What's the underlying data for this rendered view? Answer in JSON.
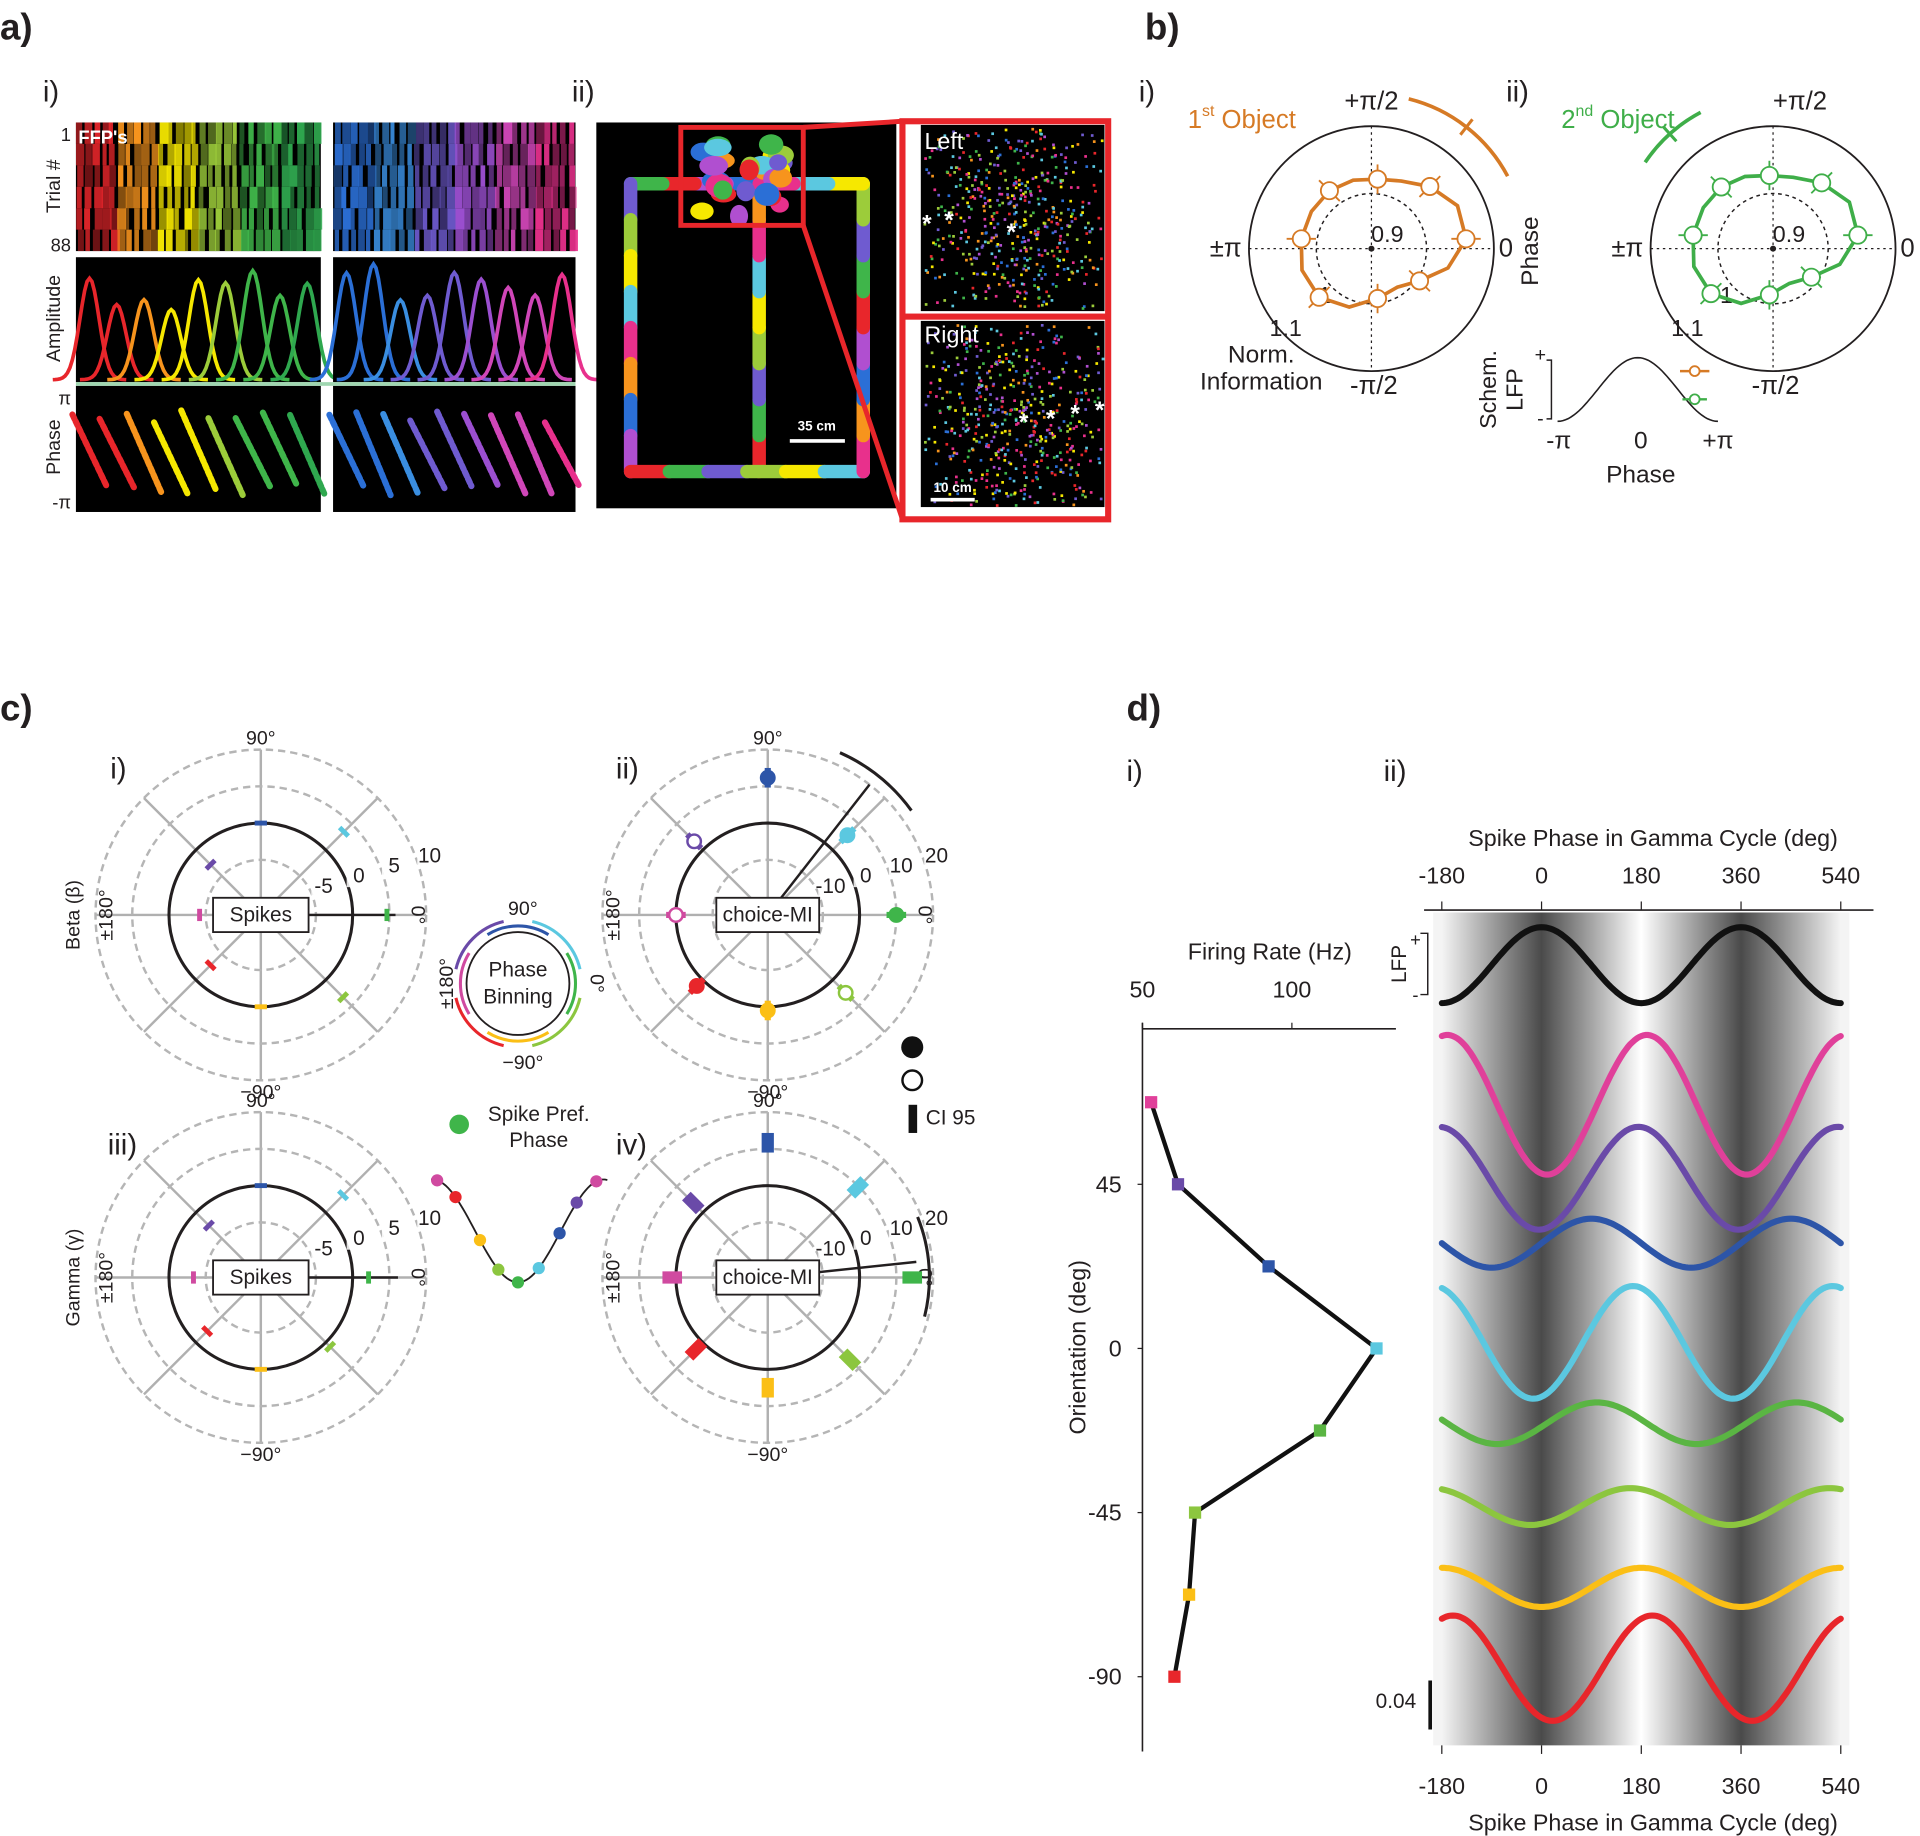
{
  "panel_labels": [
    "a)",
    "b)",
    "c)",
    "d)"
  ],
  "a": {
    "sub": [
      "i)",
      "ii)"
    ],
    "row_labels": [
      "Trial #",
      "Amplitude",
      "Phase"
    ],
    "trial_ticks": [
      "1",
      "88"
    ],
    "phase_ticks": [
      "π",
      "-π"
    ],
    "ffp": "FFP's",
    "insets": [
      "Left",
      "Right"
    ],
    "asterisk": "*",
    "scale_bars": [
      "35 cm",
      "10 cm"
    ]
  },
  "b": {
    "sub": [
      "i)",
      "ii)"
    ],
    "titles": [
      [
        "1",
        "st",
        " Object"
      ],
      [
        "2",
        "nd",
        " Object"
      ]
    ],
    "angle_labels": [
      "+π/2",
      "0",
      "±π",
      "-π/2"
    ],
    "radial_labels": [
      "0.9",
      "1",
      "1.1"
    ],
    "axis_label": [
      "Norm.",
      "Information"
    ],
    "phase_label": "Phase",
    "inset": {
      "y_label": [
        "Schem.",
        "LFP"
      ],
      "y_ticks": [
        "+",
        "-"
      ],
      "x_ticks": [
        "-π",
        "0",
        "+π"
      ],
      "x_label": "Phase"
    }
  },
  "c": {
    "sub": [
      "i)",
      "ii)",
      "iii)",
      "iv)"
    ],
    "row_labels": [
      "Beta (β)",
      "Gamma (γ)"
    ],
    "angle_labels": [
      "90°",
      "−90°",
      "±180°",
      "0°"
    ],
    "center_labels": [
      "Spikes",
      "choice-MI"
    ],
    "radial_ticks_spikes": [
      -5,
      0,
      5,
      10
    ],
    "radial_ticks_mi": [
      -10,
      0,
      10,
      20
    ],
    "binning": [
      "Phase",
      "Binning"
    ],
    "legend": {
      "ci": "CI 95",
      "pref": [
        "Spike Pref.",
        "Phase"
      ]
    }
  },
  "d": {
    "sub": [
      "i)",
      "ii)"
    ],
    "rate": {
      "type": "line",
      "x_label": "Firing Rate (Hz)",
      "xlim": [
        50,
        134.8
      ],
      "xticks": [
        50,
        100
      ],
      "y_label": "Orientation (deg)",
      "ylim": [
        -110.5,
        89.3
      ],
      "yticks": [
        45,
        0,
        -45,
        -90
      ],
      "orientations": [
        67.5,
        45,
        22.5,
        0,
        -22.5,
        -45,
        -67.5,
        -90
      ],
      "rates": [
        52.9,
        61.9,
        92.2,
        128.3,
        109.4,
        67.6,
        65.6,
        60.7
      ],
      "colors": [
        "#e0409a",
        "#6a4aa8",
        "#2d55a8",
        "#5bc8e0",
        "#5ab543",
        "#8cc63f",
        "#fbbf16",
        "#e8262b"
      ]
    },
    "phase": {
      "type": "line",
      "x_label": "Spike Phase in Gamma Cycle (deg)",
      "xlim": [
        -212,
        599
      ],
      "xticks": [
        -180,
        0,
        180,
        360,
        540
      ],
      "lfp_label": "LFP",
      "lfp_ticks": [
        "+",
        "-"
      ],
      "lfp": {
        "color": "#111111",
        "peak": 0
      },
      "scale_bar": 0.04,
      "curves": [
        {
          "color": "#e0409a",
          "amplitude": 0.057,
          "peak": 190
        },
        {
          "color": "#6a4aa8",
          "amplitude": 0.042,
          "peak": 175
        },
        {
          "color": "#2d55a8",
          "amplitude": 0.02,
          "peak": 90
        },
        {
          "color": "#5bc8e0",
          "amplitude": 0.046,
          "peak": 165
        },
        {
          "color": "#5ab543",
          "amplitude": 0.017,
          "peak": 100
        },
        {
          "color": "#8cc63f",
          "amplitude": 0.015,
          "peak": 160
        },
        {
          "color": "#fbbf16",
          "amplitude": 0.016,
          "peak": 180
        },
        {
          "color": "#e8262b",
          "amplitude": 0.043,
          "peak": 200
        }
      ]
    }
  }
}
